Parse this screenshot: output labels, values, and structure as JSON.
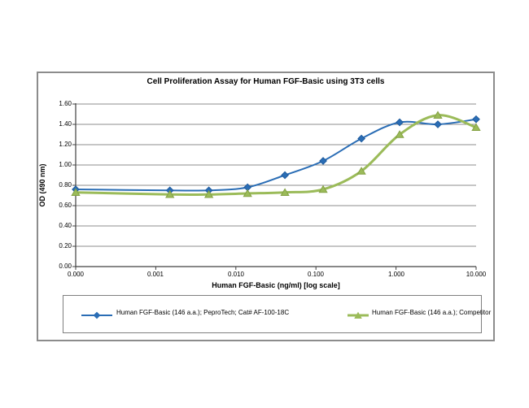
{
  "chart_data": {
    "type": "line",
    "title": "Cell Proliferation Assay for Human FGF-Basic using 3T3 cells",
    "xlabel": "Human FGF-Basic (ng/ml) [log scale]",
    "ylabel": "OD (490 nm)",
    "x_scale": "log",
    "grid": "horizontal",
    "legend_position": "bottom-box",
    "ylim": [
      0,
      1.6
    ],
    "y_tick_labels": [
      "1.60",
      "1.40",
      "1.20",
      "1.00",
      "0.80",
      "0.60",
      "0.40",
      "0.20",
      "0.00"
    ],
    "x_tick_labels": [
      "0.000",
      "0.001",
      "0.010",
      "0.100",
      "1.000",
      "10.000"
    ],
    "doses_ng_ml": [
      0,
      0.0015,
      0.0046,
      0.014,
      0.041,
      0.123,
      0.37,
      1.11,
      3.33,
      10
    ],
    "series": [
      {
        "name": "Human FGF-Basic (146 a.a.); PeproTech; Cat# AF-100-18C",
        "color": "#2A6DB5",
        "edge_color": "#1F5B9E",
        "marker": "diamond",
        "line_width": 2,
        "values": [
          0.76,
          0.75,
          0.75,
          0.78,
          0.9,
          1.04,
          1.26,
          1.42,
          1.4,
          1.45
        ]
      },
      {
        "name": "Human FGF-Basic (146 a.a.); Competitor",
        "color": "#9BBB59",
        "edge_color": "#84A144",
        "marker": "triangle-up",
        "line_width": 3,
        "values": [
          0.73,
          0.71,
          0.71,
          0.72,
          0.73,
          0.76,
          0.94,
          1.3,
          1.49,
          1.37
        ]
      }
    ]
  },
  "colors": {
    "background": "#FFFFFF",
    "gridline": "#8C8C8C",
    "axis": "#404040",
    "frame_border": "#8C8C8C",
    "legend_border": "#7F7F7F"
  }
}
